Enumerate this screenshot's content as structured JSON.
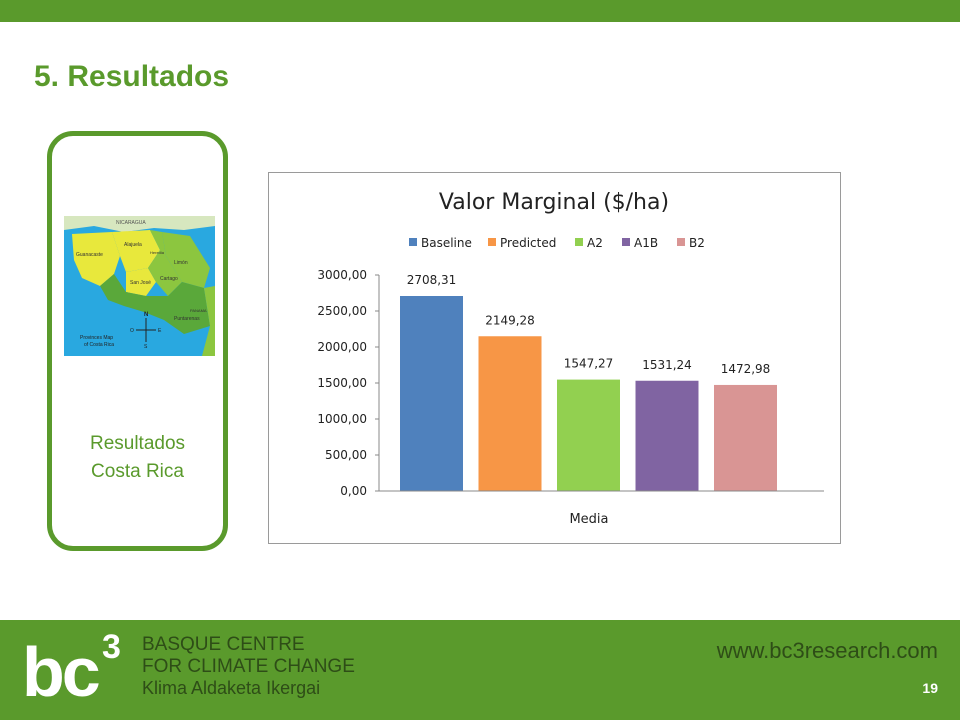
{
  "slide": {
    "title": "5. Resultados",
    "side_label_line1": "Resultados",
    "side_label_line2": "Costa Rica",
    "page_number": "19"
  },
  "map": {
    "country_label": "NICARAGUA",
    "neighbor_label": "PANAMA",
    "provinces": [
      "Guanacaste",
      "Alajuela",
      "Heredia",
      "Limón",
      "San José",
      "Cartago",
      "Puntarenas"
    ],
    "caption_line1": "Provinces Map",
    "caption_line2": "of Costa Rica",
    "compass": [
      "N",
      "O",
      "E",
      "S"
    ],
    "colors": {
      "sea": "#29a8e0",
      "yellow": "#e8e83c",
      "green": "#8cc63f",
      "dark_green": "#5aa83a"
    }
  },
  "chart_data": {
    "type": "bar",
    "title": "Valor Marginal ($/ha)",
    "xlabel": "Media",
    "ylabel": "",
    "ylim": [
      0,
      3000
    ],
    "yticks": [
      "0,00",
      "500,00",
      "1000,00",
      "1500,00",
      "2000,00",
      "2500,00",
      "3000,00"
    ],
    "legend_position": "top",
    "grid": false,
    "series": [
      {
        "name": "Baseline",
        "values": [
          2708.31
        ],
        "label": "2708,31",
        "color": "#4f81bd"
      },
      {
        "name": "Predicted",
        "values": [
          2149.28
        ],
        "label": "2149,28",
        "color": "#f79646"
      },
      {
        "name": "A2",
        "values": [
          1547.27
        ],
        "label": "1547,27",
        "color": "#92d050"
      },
      {
        "name": "A1B",
        "values": [
          1531.24
        ],
        "label": "1531,24",
        "color": "#8064a2"
      },
      {
        "name": "B2",
        "values": [
          1472.98
        ],
        "label": "1472,98",
        "color": "#d99594"
      }
    ]
  },
  "footer": {
    "logo_text": "bc",
    "logo_sup": "3",
    "org_line1": "BASQUE CENTRE",
    "org_line2": "FOR CLIMATE CHANGE",
    "org_line3": "Klima Aldaketa Ikergai",
    "website": "www.bc3research.com",
    "background": "#5a9a2c"
  }
}
